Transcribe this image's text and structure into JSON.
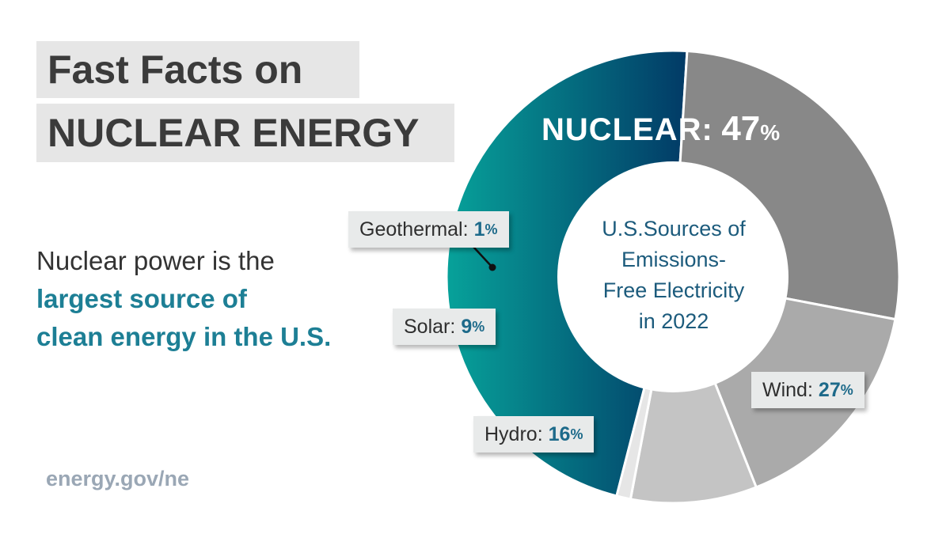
{
  "title": {
    "line1": "Fast Facts on",
    "line2": "NUCLEAR ENERGY"
  },
  "description": {
    "plain": "Nuclear power is the",
    "highlight1": "largest source of",
    "highlight2": "clean energy in the U.S."
  },
  "footer": "energy.gov/ne",
  "chart_center": {
    "lines": [
      "U.S.Sources of",
      "Emissions-",
      "Free Electricity",
      "in 2022"
    ]
  },
  "chart_data": {
    "type": "pie",
    "style": "donut",
    "title": "U.S.Sources of Emissions-Free Electricity in 2022",
    "unit": "%",
    "categories": [
      "Nuclear",
      "Wind",
      "Hydro",
      "Solar",
      "Geothermal"
    ],
    "values": [
      47,
      27,
      16,
      9,
      1
    ],
    "labels": [
      {
        "name": "NUCLEAR",
        "sep": ":",
        "value": "47",
        "pct": "%"
      },
      {
        "name": "Wind",
        "sep": ":",
        "value": "27",
        "pct": "%"
      },
      {
        "name": "Hydro",
        "sep": ":",
        "value": "16",
        "pct": "%"
      },
      {
        "name": "Solar",
        "sep": ":",
        "value": "9",
        "pct": "%"
      },
      {
        "name": "Geothermal",
        "sep": ":",
        "value": "1",
        "pct": "%"
      }
    ],
    "colors": {
      "nuclear_gradient": [
        "#07a29a",
        "#023a66"
      ],
      "wind": "#888888",
      "hydro": "#aaaaaa",
      "solar": "#c4c4c4",
      "geothermal": "#e6e6e6"
    }
  }
}
